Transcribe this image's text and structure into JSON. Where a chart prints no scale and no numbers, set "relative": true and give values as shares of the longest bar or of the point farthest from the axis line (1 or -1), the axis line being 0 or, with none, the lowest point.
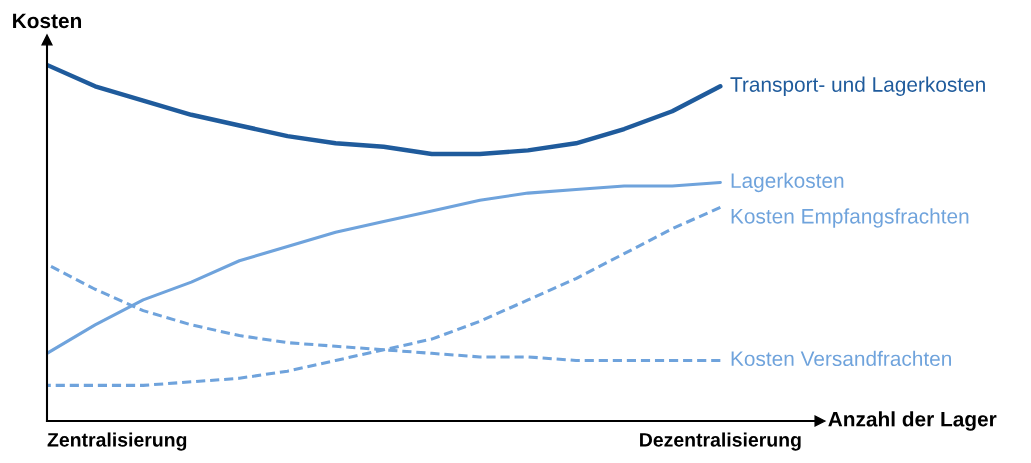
{
  "chart_data": {
    "type": "line",
    "relative": true,
    "ylabel": "Kosten",
    "xlabel": "Anzahl der Lager",
    "categories": [
      null,
      null,
      null,
      null,
      null,
      null,
      null,
      null,
      null,
      null,
      null,
      null,
      null,
      null,
      null
    ],
    "series": [
      {
        "name": "Transport- und Lagerkosten",
        "color": "#1f5b9c",
        "line_style": "solid",
        "values": [
          1.0,
          0.94,
          0.9,
          0.86,
          0.83,
          0.8,
          0.78,
          0.77,
          0.75,
          0.75,
          0.76,
          0.78,
          0.82,
          0.87,
          0.94
        ]
      },
      {
        "name": "Lagerkosten",
        "color": "#6fa3dc",
        "line_style": "solid",
        "values": [
          0.19,
          0.27,
          0.34,
          0.39,
          0.45,
          0.49,
          0.53,
          0.56,
          0.59,
          0.62,
          0.64,
          0.65,
          0.66,
          0.66,
          0.67
        ]
      },
      {
        "name": "Kosten Empfangsfrachten",
        "color": "#6fa3dc",
        "line_style": "dashed",
        "values": [
          0.1,
          0.1,
          0.1,
          0.11,
          0.12,
          0.14,
          0.17,
          0.2,
          0.23,
          0.28,
          0.34,
          0.4,
          0.47,
          0.54,
          0.6
        ]
      },
      {
        "name": "Kosten Versandfrachten",
        "color": "#6fa3dc",
        "line_style": "dashed",
        "values": [
          0.44,
          0.37,
          0.31,
          0.27,
          0.24,
          0.22,
          0.21,
          0.2,
          0.19,
          0.18,
          0.18,
          0.17,
          0.17,
          0.17,
          0.17
        ]
      }
    ],
    "annotations": [
      "Zentralisierung",
      "Dezentralisierung"
    ],
    "legend": false,
    "grid": false
  }
}
